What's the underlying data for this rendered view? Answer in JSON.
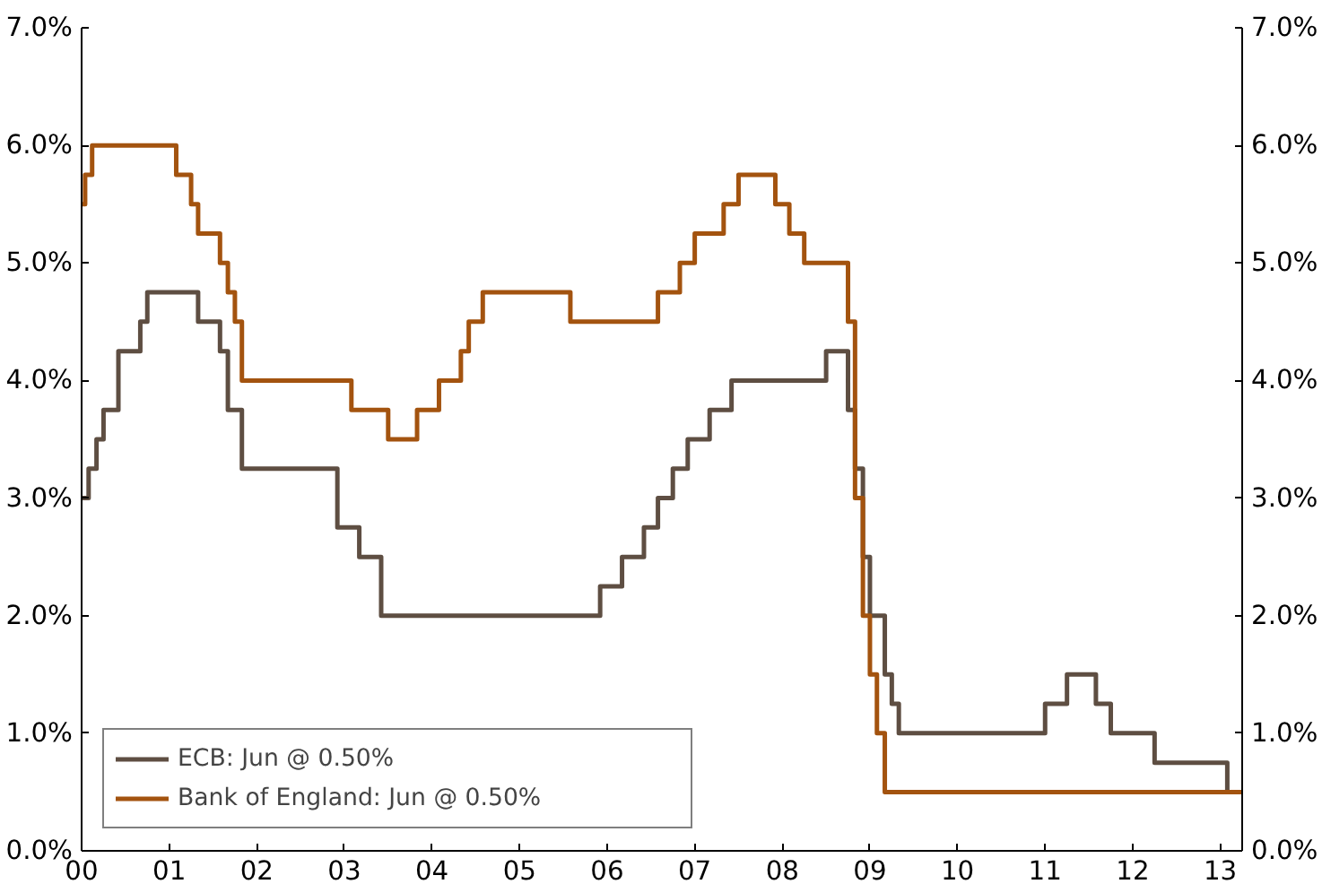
{
  "chart_data": {
    "type": "step",
    "series": [
      {
        "name": "ECB: Jun @ 0.50%",
        "color": "#5e4e42",
        "x": [
          2000.0,
          2000.08,
          2000.17,
          2000.25,
          2000.42,
          2000.67,
          2000.75,
          2001.33,
          2001.58,
          2001.67,
          2001.83,
          2002.92,
          2003.17,
          2003.42,
          2005.92,
          2006.17,
          2006.42,
          2006.58,
          2006.75,
          2006.92,
          2007.17,
          2007.42,
          2008.5,
          2008.75,
          2008.83,
          2008.92,
          2009.0,
          2009.17,
          2009.25,
          2009.33,
          2011.0,
          2011.25,
          2011.58,
          2011.75,
          2012.25,
          2013.08,
          2013.25
        ],
        "values": [
          3.0,
          3.25,
          3.5,
          3.75,
          4.25,
          4.5,
          4.75,
          4.5,
          4.25,
          3.75,
          3.25,
          2.75,
          2.5,
          2.0,
          2.25,
          2.5,
          2.75,
          3.0,
          3.25,
          3.5,
          3.75,
          4.0,
          4.25,
          3.75,
          3.25,
          2.5,
          2.0,
          1.5,
          1.25,
          1.0,
          1.25,
          1.5,
          1.25,
          1.0,
          0.75,
          0.5,
          0.5
        ]
      },
      {
        "name": "Bank of England: Jun @ 0.50%",
        "color": "#a3530f",
        "x": [
          2000.0,
          2000.04,
          2000.12,
          2001.08,
          2001.25,
          2001.33,
          2001.58,
          2001.67,
          2001.75,
          2001.83,
          2003.08,
          2003.5,
          2003.83,
          2004.08,
          2004.33,
          2004.42,
          2004.58,
          2005.58,
          2006.58,
          2006.83,
          2007.0,
          2007.33,
          2007.5,
          2007.92,
          2008.08,
          2008.25,
          2008.75,
          2008.83,
          2008.92,
          2009.0,
          2009.08,
          2009.17,
          2013.25
        ],
        "values": [
          5.5,
          5.75,
          6.0,
          5.75,
          5.5,
          5.25,
          5.0,
          4.75,
          4.5,
          4.0,
          3.75,
          3.5,
          3.75,
          4.0,
          4.25,
          4.5,
          4.75,
          4.5,
          4.75,
          5.0,
          5.25,
          5.5,
          5.75,
          5.5,
          5.25,
          5.0,
          4.5,
          3.0,
          2.0,
          1.5,
          1.0,
          0.5,
          0.5
        ]
      }
    ],
    "xlim": [
      2000,
      2013.25
    ],
    "xticks": [
      {
        "value": 2000,
        "label": "00"
      },
      {
        "value": 2001,
        "label": "01"
      },
      {
        "value": 2002,
        "label": "02"
      },
      {
        "value": 2003,
        "label": "03"
      },
      {
        "value": 2004,
        "label": "04"
      },
      {
        "value": 2005,
        "label": "05"
      },
      {
        "value": 2006,
        "label": "06"
      },
      {
        "value": 2007,
        "label": "07"
      },
      {
        "value": 2008,
        "label": "08"
      },
      {
        "value": 2009,
        "label": "09"
      },
      {
        "value": 2010,
        "label": "10"
      },
      {
        "value": 2011,
        "label": "11"
      },
      {
        "value": 2012,
        "label": "12"
      },
      {
        "value": 2013,
        "label": "13"
      }
    ],
    "ylim": [
      0,
      7
    ],
    "yticks": [
      {
        "value": 0,
        "label": "0.0%"
      },
      {
        "value": 1,
        "label": "1.0%"
      },
      {
        "value": 2,
        "label": "2.0%"
      },
      {
        "value": 3,
        "label": "3.0%"
      },
      {
        "value": 4,
        "label": "4.0%"
      },
      {
        "value": 5,
        "label": "5.0%"
      },
      {
        "value": 6,
        "label": "6.0%"
      },
      {
        "value": 7,
        "label": "7.0%"
      }
    ],
    "y2lim": [
      0,
      7
    ],
    "y2ticks": [
      {
        "value": 0,
        "label": "0.0%"
      },
      {
        "value": 1,
        "label": "1.0%"
      },
      {
        "value": 2,
        "label": "2.0%"
      },
      {
        "value": 3,
        "label": "3.0%"
      },
      {
        "value": 4,
        "label": "4.0%"
      },
      {
        "value": 5,
        "label": "5.0%"
      },
      {
        "value": 6,
        "label": "6.0%"
      },
      {
        "value": 7,
        "label": "7.0%"
      }
    ],
    "legend": "bottom left"
  }
}
